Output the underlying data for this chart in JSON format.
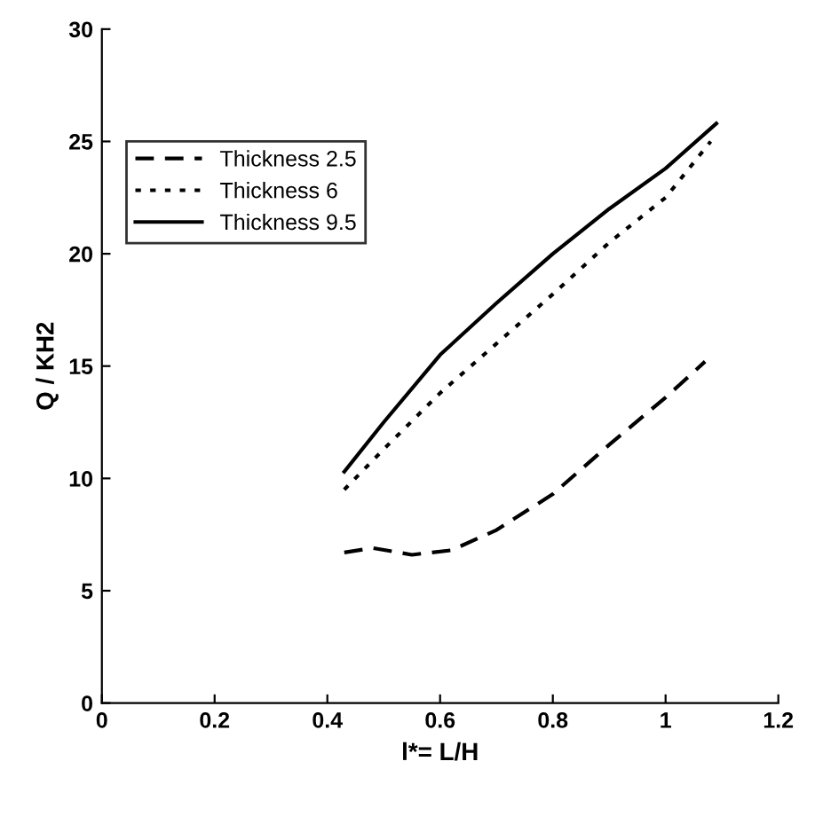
{
  "chart_data": {
    "type": "line",
    "xlabel": "l*= L/H",
    "ylabel": "Q / KH2",
    "xlim": [
      0,
      1.2
    ],
    "xticks": [
      0,
      0.2,
      0.4,
      0.6,
      0.8,
      1,
      1.2
    ],
    "ylim": [
      0,
      30
    ],
    "yticks": [
      0,
      5,
      10,
      15,
      20,
      25,
      30
    ],
    "grid": false,
    "legend": "top left",
    "marker": "none",
    "series": [
      {
        "name": "Thickness 2.5",
        "color": "#000000",
        "line_style": "dashed",
        "x": [
          0.43,
          0.48,
          0.55,
          0.62,
          0.7,
          0.8,
          0.9,
          1.0,
          1.07
        ],
        "values": [
          6.7,
          6.9,
          6.6,
          6.8,
          7.7,
          9.3,
          11.5,
          13.6,
          15.2
        ]
      },
      {
        "name": "Thickness 6",
        "color": "#000000",
        "line_style": "dotted",
        "x": [
          0.43,
          0.5,
          0.6,
          0.7,
          0.8,
          0.9,
          1.0,
          1.08
        ],
        "values": [
          9.5,
          11.3,
          13.8,
          16,
          18.2,
          20.5,
          22.5,
          25
        ]
      },
      {
        "name": "Thickness 9.5",
        "color": "#000000",
        "line_style": "solid",
        "x": [
          0.43,
          0.5,
          0.6,
          0.7,
          0.8,
          0.9,
          1.0,
          1.09
        ],
        "values": [
          10.3,
          12.5,
          15.5,
          17.8,
          20,
          22,
          23.8,
          25.8
        ]
      }
    ]
  }
}
